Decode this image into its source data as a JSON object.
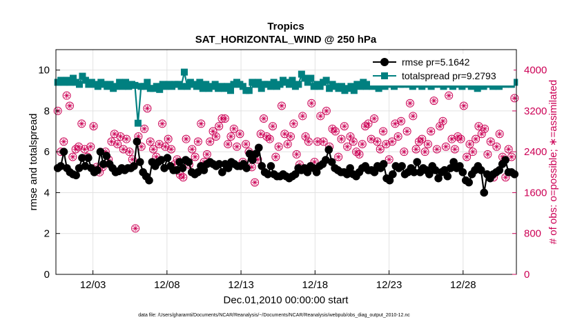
{
  "chart_data": {
    "type": "line",
    "title": "Tropics",
    "subtitle": "SAT_HORIZONTAL_WIND @ 250 hPa",
    "xlabel": "Dec.01,2010 00:00:00 start",
    "ylabel": "rmse and totalspread",
    "y2label": "# of obs: o=possible; ∗=assimilated",
    "footnote": "data file: /Users/gharamti/Documents/NCAR/Reanalysis/~/Documents/NCAR/Reanalysis/webpub/obs_diag_output_2010-12.nc",
    "xlim": [
      0.5,
      31.6
    ],
    "ylim": [
      0,
      11
    ],
    "y2lim": [
      0,
      4400
    ],
    "xticks": [
      3,
      8,
      13,
      18,
      23,
      28
    ],
    "xtick_labels": [
      "12/03",
      "12/08",
      "12/13",
      "12/18",
      "12/23",
      "12/28"
    ],
    "yticks": [
      0,
      2,
      4,
      6,
      8,
      10
    ],
    "y2ticks": [
      0,
      800,
      1600,
      2400,
      3200,
      4000
    ],
    "colors": {
      "rmse": "#000000",
      "spread": "#008080",
      "obs": "#cc0055"
    },
    "series": [
      {
        "name": "rmse pr=5.1642",
        "axis": "left",
        "marker": "circle",
        "values": [
          5.2,
          5.3,
          6.0,
          5.2,
          5.0,
          4.9,
          4.85,
          5.2,
          5.7,
          5.3,
          5.7,
          5.2,
          5.0,
          5.1,
          6.0,
          5.4,
          5.8,
          5.4,
          5.2,
          5.0,
          5.05,
          5.2,
          5.1,
          5.2,
          5.2,
          5.3,
          6.5,
          5.5,
          5.0,
          4.8,
          4.6,
          5.5,
          5.3,
          5.5,
          5.6,
          5.2,
          5.7,
          5.3,
          5.1,
          5.1,
          5.5,
          5.2,
          5.6,
          5.5,
          5.0,
          4.9,
          5.0,
          5.3,
          5.1,
          5.4,
          5.5,
          5.4,
          5.3,
          5.4,
          5.0,
          5.4,
          5.2,
          5.5,
          5.4,
          5.3,
          5.3,
          5.4,
          5.2,
          5.9,
          5.6,
          5.9,
          6.2,
          5.3,
          5.0,
          4.9,
          5.3,
          4.9,
          4.8,
          4.8,
          4.9,
          4.8,
          4.7,
          4.8,
          4.9,
          5.2,
          5.1,
          5.2,
          5.0,
          5.3,
          5.2,
          5.0,
          5.3,
          5.4,
          5.6,
          6.1,
          5.5,
          5.2,
          5.1,
          5.0,
          5.0,
          4.9,
          5.2,
          4.9,
          4.8,
          5.0,
          5.2,
          5.3,
          5.1,
          5.1,
          5.0,
          5.3,
          5.2,
          5.4,
          4.7,
          4.6,
          4.9,
          5.3,
          5.2,
          5.3,
          4.9,
          5.0,
          5.2,
          5.0,
          5.5,
          5.0,
          5.2,
          5.1,
          4.9,
          5.3,
          5.1,
          4.7,
          5.0,
          5.1,
          4.8,
          5.2,
          5.5,
          5.2,
          5.3,
          5.0,
          4.6,
          4.5,
          4.9,
          5.1,
          5.3,
          5.1,
          4.0,
          4.9,
          4.7,
          4.9,
          5.0,
          5.1,
          5.4,
          5.6,
          5.0,
          5.0,
          4.9
        ]
      },
      {
        "name": "totalspread pr=9.2793",
        "axis": "left",
        "marker": "square",
        "values": [
          9.4,
          9.5,
          9.4,
          9.5,
          9.4,
          9.6,
          9.4,
          9.3,
          9.7,
          9.5,
          9.3,
          9.4,
          9.3,
          9.2,
          9.4,
          9.3,
          9.2,
          9.3,
          9.1,
          9.2,
          9.4,
          9.2,
          9.4,
          9.2,
          9.3,
          9.25,
          7.4,
          9.2,
          9.2,
          9.4,
          9.1,
          9.1,
          9.2,
          9.05,
          9.3,
          9.2,
          9.3,
          9.2,
          9.3,
          9.3,
          9.2,
          9.9,
          9.2,
          9.4,
          9.3,
          9.2,
          9.4,
          9.1,
          9.3,
          9.1,
          9.2,
          9.3,
          9.1,
          9.2,
          9.1,
          9.2,
          9.0,
          9.3,
          9.4,
          9.3,
          9.2,
          9.0,
          9.0,
          9.4,
          9.3,
          9.4,
          9.1,
          9.3,
          9.3,
          9.2,
          9.4,
          9.2,
          9.3,
          9.5,
          9.4,
          9.3,
          9.5,
          9.2,
          9.3,
          9.8,
          9.6,
          9.4,
          9.6,
          9.2,
          9.3,
          9.2,
          9.4,
          9.5,
          9.1,
          9.3,
          9.2,
          9.1,
          9.2,
          9.0,
          9.1,
          9.2,
          9.0,
          9.3,
          9.2,
          9.4,
          9.2,
          9.3,
          9.2,
          9.3,
          9.1,
          9.3,
          9.2,
          9.4,
          9.3,
          9.2,
          9.4,
          9.3,
          9.3,
          9.4,
          9.3,
          9.2,
          9.3,
          9.4,
          9.2,
          9.3,
          9.4,
          9.2,
          9.3,
          9.4,
          9.3,
          9.2,
          9.3,
          9.4,
          9.2,
          9.3,
          9.5,
          9.2,
          9.4,
          9.3,
          9.2,
          9.3,
          9.1,
          9.3,
          9.2,
          9.4,
          9.3,
          9.2,
          9.4,
          9.2,
          9.5,
          9.3,
          9.4,
          9.3,
          9.4
        ]
      },
      {
        "name": "# of obs possible/assimilated",
        "axis": "right",
        "marker": "circle-asterisk",
        "values": [
          3200,
          2400,
          2600,
          3500,
          3300,
          2300,
          2450,
          2500,
          2950,
          2450,
          2300,
          2500,
          2900,
          2100,
          2000,
          2100,
          2400,
          2250,
          2600,
          2750,
          2550,
          2700,
          2450,
          2650,
          2400,
          2250,
          900,
          2700,
          2500,
          2850,
          3250,
          2600,
          2450,
          2300,
          2550,
          2950,
          2500,
          2650,
          2450,
          2150,
          2250,
          1950,
          1900,
          2650,
          2150,
          2450,
          2300,
          2600,
          2950,
          2200,
          2350,
          2600,
          2800,
          2700,
          2900,
          3050,
          3050,
          2550,
          2700,
          2850,
          2500,
          2750,
          2200,
          2550,
          2400,
          2100,
          1800,
          2250,
          2750,
          3050,
          2700,
          2650,
          2900,
          2300,
          2500,
          3300,
          2750,
          2550,
          2700,
          2950,
          2350,
          2150,
          3100,
          2700,
          2600,
          3350,
          2200,
          2600,
          3100,
          2600,
          3200,
          2500,
          2850,
          2800,
          2300,
          2650,
          2900,
          2500,
          2700,
          2600,
          2400,
          2350,
          2550,
          2900,
          2950,
          2650,
          3050,
          2600,
          2450,
          2800,
          2550,
          2250,
          2600,
          2950,
          2700,
          3000,
          2400,
          2800,
          3350,
          3100,
          2450,
          2600,
          2650,
          2400,
          2550,
          2800,
          3400,
          2450,
          2900,
          3000,
          2500,
          3500,
          2650,
          2450,
          2700,
          2650,
          3300,
          2300,
          2550,
          2400,
          2650,
          2900,
          2750,
          2850,
          2350,
          2600,
          1900,
          2500,
          2750,
          2300,
          1900,
          2450,
          2300,
          3450
        ]
      }
    ]
  }
}
